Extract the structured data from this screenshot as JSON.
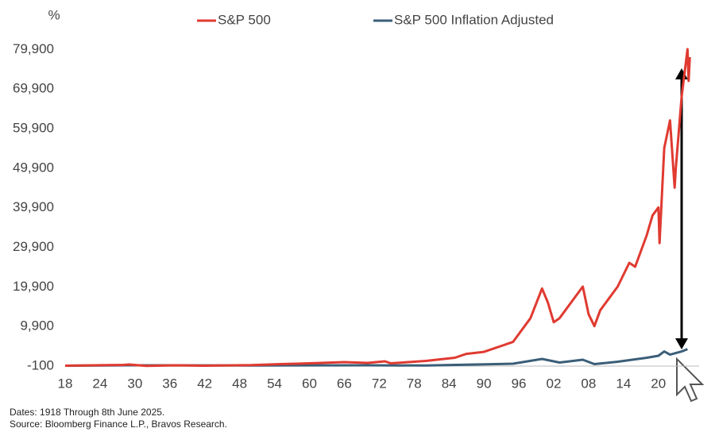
{
  "chart_data": {
    "type": "line",
    "y_label": "%",
    "note": "Dates: 1918 Through 8th June 2025.",
    "source": "Source: Bloomberg Finance L.P., Bravos Research.",
    "xlim": [
      1915,
      2027
    ],
    "xticks": [
      {
        "value": 1918,
        "label": "18"
      },
      {
        "value": 1924,
        "label": "24"
      },
      {
        "value": 1930,
        "label": "30"
      },
      {
        "value": 1936,
        "label": "36"
      },
      {
        "value": 1942,
        "label": "42"
      },
      {
        "value": 1948,
        "label": "48"
      },
      {
        "value": 1954,
        "label": "54"
      },
      {
        "value": 1960,
        "label": "60"
      },
      {
        "value": 1966,
        "label": "66"
      },
      {
        "value": 1972,
        "label": "72"
      },
      {
        "value": 1978,
        "label": "78"
      },
      {
        "value": 1984,
        "label": "84"
      },
      {
        "value": 1990,
        "label": "90"
      },
      {
        "value": 1996,
        "label": "96"
      },
      {
        "value": 2002,
        "label": "02"
      },
      {
        "value": 2008,
        "label": "08"
      },
      {
        "value": 2014,
        "label": "14"
      },
      {
        "value": 2020,
        "label": "20"
      }
    ],
    "ylim": [
      -100,
      84000
    ],
    "yticks": [
      -100,
      {
        "value": 9900,
        "label": "9,900"
      },
      {
        "value": 19900,
        "label": "19,900"
      },
      {
        "value": 29900,
        "label": "29,900"
      },
      {
        "value": 39900,
        "label": "39,900"
      },
      {
        "value": 49900,
        "label": "49,900"
      },
      {
        "value": 59900,
        "label": "59,900"
      },
      {
        "value": 69900,
        "label": "69,900"
      },
      {
        "value": 79900,
        "label": "79,900"
      }
    ],
    "series": [
      {
        "name": "S&P 500",
        "color": "#e03a31",
        "x": [
          1918,
          1928,
          1929,
          1932,
          1937,
          1942,
          1950,
          1955,
          1960,
          1966,
          1970,
          1973,
          1974,
          1980,
          1985,
          1987,
          1990,
          1995,
          1998,
          2000,
          2001,
          2002,
          2003,
          2007,
          2008,
          2009,
          2010,
          2013,
          2015,
          2016,
          2018,
          2019,
          2020,
          2020.2,
          2021,
          2022,
          2022.8,
          2023,
          2024,
          2025,
          2025.2,
          2025.4
        ],
        "values": [
          0,
          200,
          300,
          -50,
          100,
          0,
          150,
          400,
          600,
          900,
          700,
          1100,
          600,
          1200,
          2000,
          3000,
          3500,
          6000,
          12000,
          19500,
          16000,
          11000,
          12000,
          20000,
          13000,
          10000,
          14000,
          20000,
          26000,
          25000,
          33000,
          38000,
          40000,
          31000,
          55000,
          62000,
          45000,
          50000,
          68000,
          80000,
          72000,
          78000
        ]
      },
      {
        "name": "S&P 500 Inflation Adjusted",
        "color": "#3b5e78",
        "x": [
          1918,
          1929,
          1950,
          1970,
          1980,
          1995,
          2000,
          2003,
          2007,
          2009,
          2013,
          2018,
          2020,
          2021,
          2022,
          2024,
          2025
        ],
        "values": [
          0,
          100,
          50,
          100,
          50,
          500,
          1700,
          800,
          1500,
          400,
          1000,
          2000,
          2500,
          3600,
          2800,
          3600,
          4200
        ]
      }
    ]
  }
}
